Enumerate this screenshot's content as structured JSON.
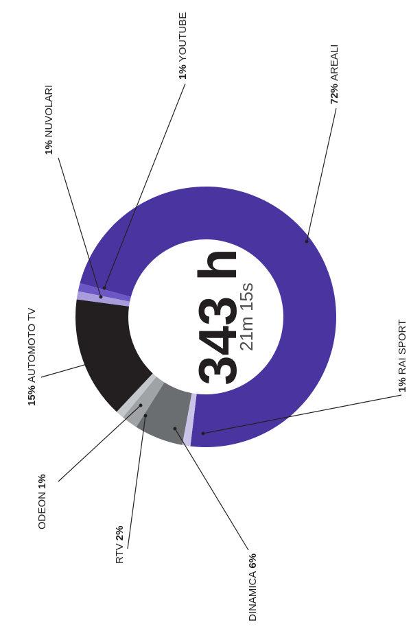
{
  "chart_data": {
    "type": "donut",
    "center_title": "343 h",
    "center_subtitle": "21m 15s",
    "categories": [
      "AREALI",
      "RAI SPORT",
      "DINAMICA",
      "RTV",
      "ODEON",
      "AUTOMOTO TV",
      "NUVOLARI",
      "YOUTUBE"
    ],
    "values": [
      72,
      1,
      6,
      2,
      1,
      15,
      1,
      1
    ],
    "value_labels": [
      "72%",
      "1%",
      "6%",
      "2%",
      "1%",
      "15%",
      "1%",
      "1%"
    ],
    "colors": [
      "#4a35a0",
      "#c9c3e8",
      "#6b6e70",
      "#9fa3a6",
      "#c5c8ca",
      "#231f20",
      "#a89cdc",
      "#6c57c4"
    ]
  }
}
